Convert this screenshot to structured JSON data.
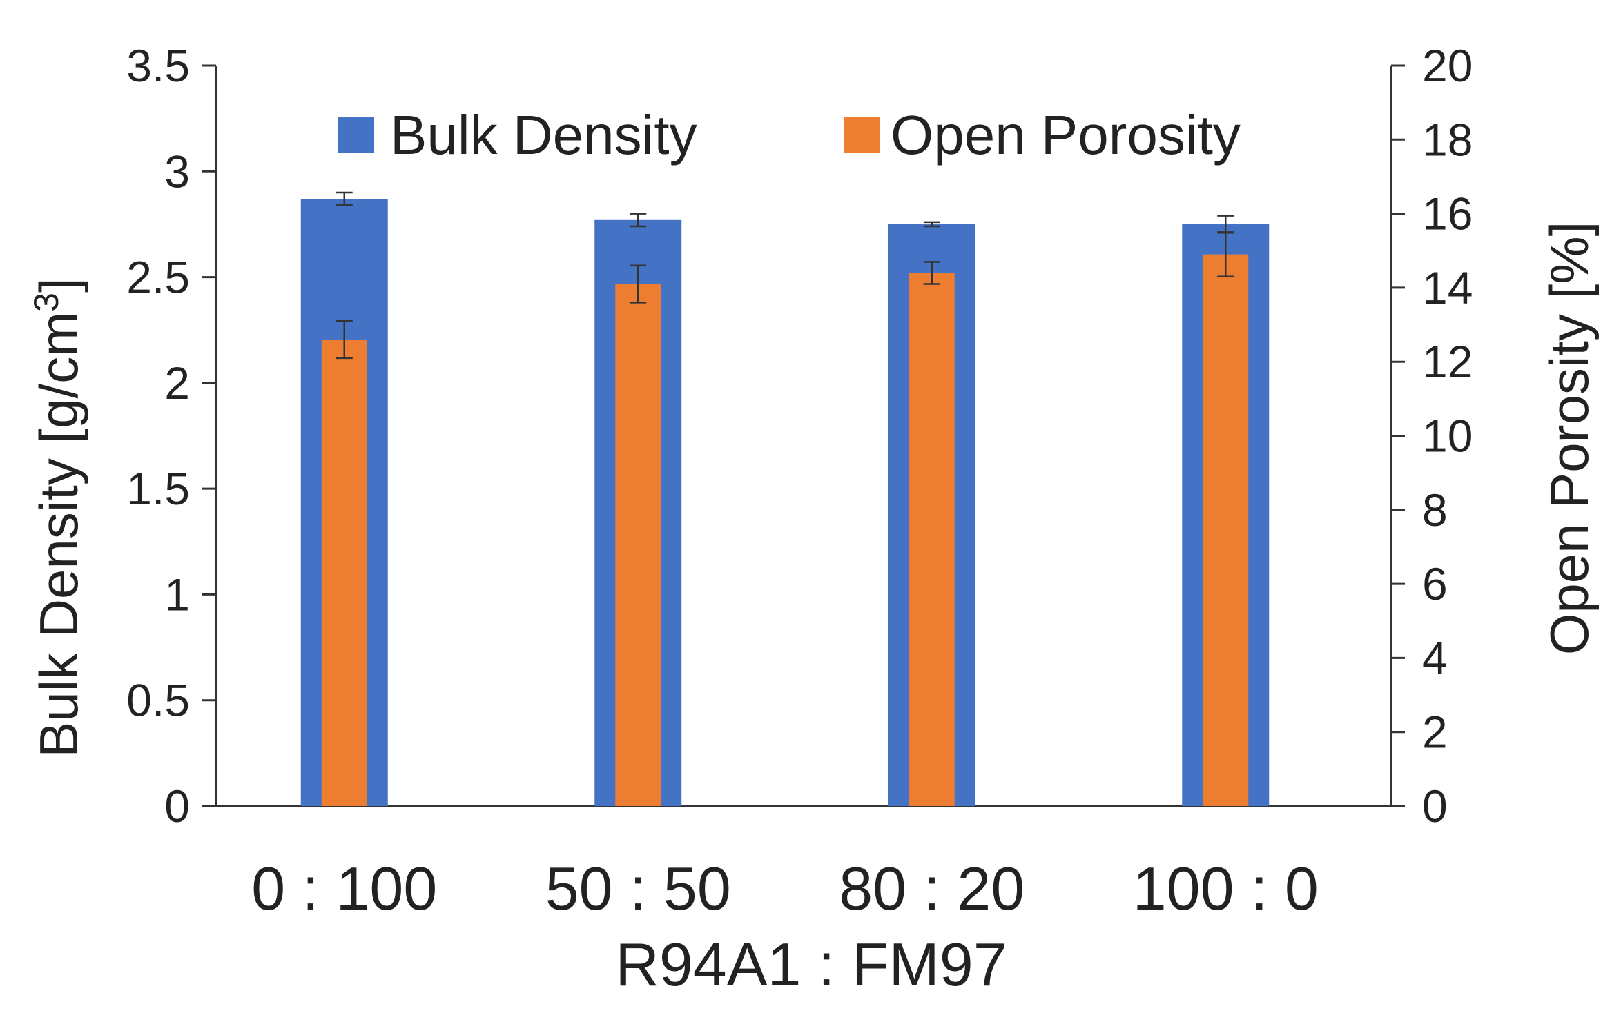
{
  "chart_data": {
    "type": "bar",
    "categories": [
      "0 : 100",
      "50 : 50",
      "80 : 20",
      "100 : 0"
    ],
    "xlabel": "R94A1 : FM97",
    "series": [
      {
        "name": "Bulk Density",
        "axis": "left",
        "color": "#4472C4",
        "values": [
          2.87,
          2.77,
          2.75,
          2.75
        ],
        "errors": [
          0.03,
          0.03,
          0.01,
          0.04
        ]
      },
      {
        "name": "Open Porosity",
        "axis": "right",
        "color": "#ED7D31",
        "values": [
          12.6,
          14.1,
          14.4,
          14.9
        ],
        "errors": [
          0.5,
          0.5,
          0.3,
          0.6
        ]
      }
    ],
    "left_axis": {
      "label_main": "Bulk Density [g/cm",
      "label_sup": "3",
      "label_end": "]",
      "ylim": [
        0,
        3.5
      ],
      "ticks": [
        "0",
        "0.5",
        "1",
        "1.5",
        "2",
        "2.5",
        "3",
        "3.5"
      ]
    },
    "right_axis": {
      "label": "Open Porosity [%]",
      "ylim": [
        0,
        20
      ],
      "ticks": [
        "0",
        "2",
        "4",
        "6",
        "8",
        "10",
        "12",
        "14",
        "16",
        "18",
        "20"
      ]
    },
    "legend": {
      "placement": "top",
      "entries": [
        "Bulk Density",
        "Open Porosity"
      ]
    },
    "grid": false
  }
}
